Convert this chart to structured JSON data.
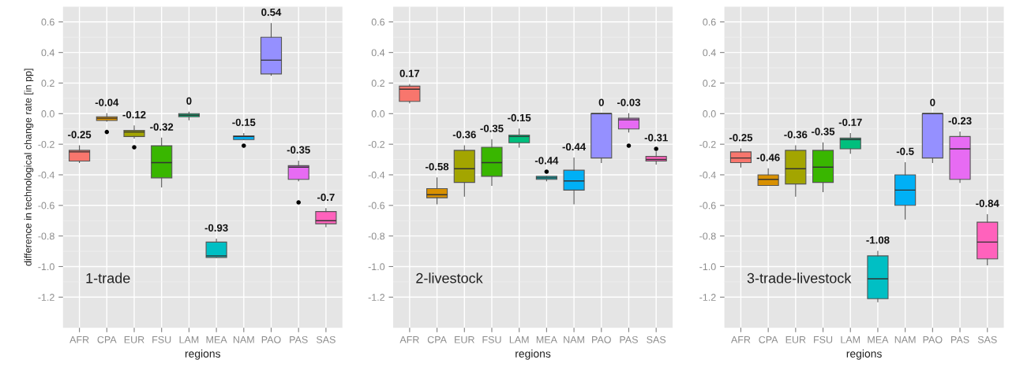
{
  "chart_data": [
    {
      "type": "box",
      "xlabel": "regions",
      "ylabel": "difference in technological change rate [in pp]",
      "grid": true,
      "categories": [
        "AFR",
        "CPA",
        "EUR",
        "FSU",
        "LAM",
        "MEA",
        "NAM",
        "PAO",
        "PAS",
        "SAS"
      ],
      "colors": [
        "#f8766d",
        "#d89000",
        "#a3a500",
        "#39b600",
        "#00bf7d",
        "#00bfc4",
        "#00b0f6",
        "#9590ff",
        "#e76bf3",
        "#ff62bc"
      ],
      "boxes": [
        {
          "low": -0.32,
          "q1": -0.31,
          "median": -0.25,
          "q3": -0.24,
          "high": -0.21
        },
        {
          "low": -0.05,
          "q1": -0.045,
          "median": -0.03,
          "q3": -0.02,
          "high": 0.0,
          "outliers": [
            -0.12
          ]
        },
        {
          "low": -0.16,
          "q1": -0.15,
          "median": -0.12,
          "q3": -0.11,
          "high": -0.08,
          "outliers": [
            -0.22
          ]
        },
        {
          "low": -0.48,
          "q1": -0.42,
          "median": -0.32,
          "q3": -0.21,
          "high": -0.16
        },
        {
          "low": -0.04,
          "q1": -0.02,
          "median": -0.01,
          "q3": 0.0,
          "high": 0.01
        },
        {
          "low": -0.94,
          "q1": -0.94,
          "median": -0.93,
          "q3": -0.84,
          "high": -0.82
        },
        {
          "low": -0.17,
          "q1": -0.17,
          "median": -0.15,
          "q3": -0.145,
          "high": -0.13,
          "outliers": [
            -0.21
          ]
        },
        {
          "low": 0.25,
          "q1": 0.26,
          "median": 0.35,
          "q3": 0.5,
          "high": 0.59
        },
        {
          "low": -0.44,
          "q1": -0.43,
          "median": -0.35,
          "q3": -0.34,
          "high": -0.31,
          "outliers": [
            -0.58
          ]
        },
        {
          "low": -0.74,
          "q1": -0.72,
          "median": -0.7,
          "q3": -0.64,
          "high": -0.62
        }
      ],
      "ylim": [
        -1.4,
        0.7
      ],
      "yticks": [
        {
          "value": -1.2,
          "label": "-1.2"
        },
        {
          "value": -1.0,
          "label": "-1.0"
        },
        {
          "value": -0.8,
          "label": "-0.8"
        },
        {
          "value": -0.6,
          "label": "-0.6"
        },
        {
          "value": -0.4,
          "label": "-0.4"
        },
        {
          "value": -0.2,
          "label": "-0.2"
        },
        {
          "value": 0,
          "label": "0.0"
        },
        {
          "value": 0.2,
          "label": "0.2"
        },
        {
          "value": 0.4,
          "label": "0.4"
        },
        {
          "value": 0.6,
          "label": "0.6"
        }
      ],
      "annotations": [
        "1-trade",
        {
          "text": "-0.25",
          "x": "AFR",
          "y": -0.21
        },
        {
          "text": "-0.04",
          "x": "CPA",
          "y": 0.0
        },
        {
          "text": "-0.12",
          "x": "EUR",
          "y": -0.08
        },
        {
          "text": "-0.32",
          "x": "FSU",
          "y": -0.16
        },
        {
          "text": "0",
          "x": "LAM",
          "y": 0.01
        },
        {
          "text": "-0.93",
          "x": "MEA",
          "y": -0.82
        },
        {
          "text": "-0.15",
          "x": "NAM",
          "y": -0.13
        },
        {
          "text": "0.54",
          "x": "PAO",
          "y": 0.59
        },
        {
          "text": "-0.35",
          "x": "PAS",
          "y": -0.31
        },
        {
          "text": "-0.7",
          "x": "SAS",
          "y": -0.62
        }
      ]
    },
    {
      "type": "box",
      "xlabel": "regions",
      "grid": true,
      "categories": [
        "AFR",
        "CPA",
        "EUR",
        "FSU",
        "LAM",
        "MEA",
        "NAM",
        "PAO",
        "PAS",
        "SAS"
      ],
      "colors": [
        "#f8766d",
        "#d89000",
        "#a3a500",
        "#39b600",
        "#00bf7d",
        "#00bfc4",
        "#00b0f6",
        "#9590ff",
        "#e76bf3",
        "#ff62bc"
      ],
      "boxes": [
        {
          "low": 0.07,
          "q1": 0.08,
          "median": 0.16,
          "q3": 0.18,
          "high": 0.19
        },
        {
          "low": -0.59,
          "q1": -0.55,
          "median": -0.53,
          "q3": -0.49,
          "high": -0.42
        },
        {
          "low": -0.54,
          "q1": -0.45,
          "median": -0.36,
          "q3": -0.24,
          "high": -0.21
        },
        {
          "low": -0.47,
          "q1": -0.41,
          "median": -0.32,
          "q3": -0.22,
          "high": -0.17
        },
        {
          "low": -0.22,
          "q1": -0.19,
          "median": -0.15,
          "q3": -0.14,
          "high": -0.1
        },
        {
          "low": -0.44,
          "q1": -0.43,
          "median": -0.42,
          "q3": -0.41,
          "high": -0.41,
          "outliers": [
            -0.38
          ]
        },
        {
          "low": -0.59,
          "q1": -0.5,
          "median": -0.44,
          "q3": -0.37,
          "high": -0.29
        },
        {
          "low": -0.32,
          "q1": -0.29,
          "median": 0.0,
          "q3": 0.0,
          "high": 0.0
        },
        {
          "low": -0.12,
          "q1": -0.1,
          "median": -0.04,
          "q3": -0.03,
          "high": 0.0,
          "outliers": [
            -0.21
          ]
        },
        {
          "low": -0.33,
          "q1": -0.31,
          "median": -0.3,
          "q3": -0.28,
          "high": -0.25,
          "outliers": [
            -0.23
          ]
        }
      ],
      "ylim": [
        -1.4,
        0.7
      ],
      "yticks": [
        {
          "value": -1.2,
          "label": "-1.2"
        },
        {
          "value": -1.0,
          "label": "-1.0"
        },
        {
          "value": -0.8,
          "label": "-0.8"
        },
        {
          "value": -0.6,
          "label": "-0.6"
        },
        {
          "value": -0.4,
          "label": "-0.4"
        },
        {
          "value": -0.2,
          "label": "-0.2"
        },
        {
          "value": 0,
          "label": "0.0"
        },
        {
          "value": 0.2,
          "label": "0.2"
        },
        {
          "value": 0.4,
          "label": "0.4"
        },
        {
          "value": 0.6,
          "label": "0.6"
        }
      ],
      "annotations": [
        "2-livestock",
        {
          "text": "0.17",
          "x": "AFR",
          "y": 0.19
        },
        {
          "text": "-0.58",
          "x": "CPA",
          "y": -0.42
        },
        {
          "text": "-0.36",
          "x": "EUR",
          "y": -0.21
        },
        {
          "text": "-0.35",
          "x": "FSU",
          "y": -0.17
        },
        {
          "text": "-0.15",
          "x": "LAM",
          "y": -0.1
        },
        {
          "text": "-0.44",
          "x": "MEA",
          "y": -0.41
        },
        {
          "text": "-0.44",
          "x": "NAM",
          "y": -0.29
        },
        {
          "text": "0",
          "x": "PAO",
          "y": 0.0
        },
        {
          "text": "-0.03",
          "x": "PAS",
          "y": 0.0
        },
        {
          "text": "-0.31",
          "x": "SAS",
          "y": -0.23
        }
      ]
    },
    {
      "type": "box",
      "xlabel": "regions",
      "grid": true,
      "categories": [
        "AFR",
        "CPA",
        "EUR",
        "FSU",
        "LAM",
        "MEA",
        "NAM",
        "PAO",
        "PAS",
        "SAS"
      ],
      "colors": [
        "#f8766d",
        "#d89000",
        "#a3a500",
        "#39b600",
        "#00bf7d",
        "#00bfc4",
        "#00b0f6",
        "#9590ff",
        "#e76bf3",
        "#ff62bc"
      ],
      "boxes": [
        {
          "low": -0.35,
          "q1": -0.32,
          "median": -0.29,
          "q3": -0.25,
          "high": -0.23
        },
        {
          "low": -0.47,
          "q1": -0.47,
          "median": -0.43,
          "q3": -0.4,
          "high": -0.36
        },
        {
          "low": -0.54,
          "q1": -0.46,
          "median": -0.36,
          "q3": -0.24,
          "high": -0.21
        },
        {
          "low": -0.51,
          "q1": -0.45,
          "median": -0.35,
          "q3": -0.24,
          "high": -0.19
        },
        {
          "low": -0.26,
          "q1": -0.23,
          "median": -0.17,
          "q3": -0.16,
          "high": -0.13
        },
        {
          "low": -1.23,
          "q1": -1.21,
          "median": -1.08,
          "q3": -0.93,
          "high": -0.9
        },
        {
          "low": -0.69,
          "q1": -0.6,
          "median": -0.5,
          "q3": -0.4,
          "high": -0.32
        },
        {
          "low": -0.32,
          "q1": -0.29,
          "median": 0.0,
          "q3": 0.0,
          "high": 0.0
        },
        {
          "low": -0.45,
          "q1": -0.43,
          "median": -0.23,
          "q3": -0.15,
          "high": -0.12
        },
        {
          "low": -0.99,
          "q1": -0.95,
          "median": -0.84,
          "q3": -0.71,
          "high": -0.66
        }
      ],
      "ylim": [
        -1.4,
        0.7
      ],
      "yticks": [
        {
          "value": -1.2,
          "label": "-1.2"
        },
        {
          "value": -1.0,
          "label": "-1.0"
        },
        {
          "value": -0.8,
          "label": "-0.8"
        },
        {
          "value": -0.6,
          "label": "-0.6"
        },
        {
          "value": -0.4,
          "label": "-0.4"
        },
        {
          "value": -0.2,
          "label": "-0.2"
        },
        {
          "value": 0,
          "label": "0.0"
        },
        {
          "value": 0.2,
          "label": "0.2"
        },
        {
          "value": 0.4,
          "label": "0.4"
        },
        {
          "value": 0.6,
          "label": "0.6"
        }
      ],
      "annotations": [
        "3-trade-livestock",
        {
          "text": "-0.25",
          "x": "AFR",
          "y": -0.23
        },
        {
          "text": "-0.46",
          "x": "CPA",
          "y": -0.36
        },
        {
          "text": "-0.36",
          "x": "EUR",
          "y": -0.21
        },
        {
          "text": "-0.35",
          "x": "FSU",
          "y": -0.19
        },
        {
          "text": "-0.17",
          "x": "LAM",
          "y": -0.13
        },
        {
          "text": "-1.08",
          "x": "MEA",
          "y": -0.9
        },
        {
          "text": "-0.5",
          "x": "NAM",
          "y": -0.32
        },
        {
          "text": "0",
          "x": "PAO",
          "y": 0.0
        },
        {
          "text": "-0.23",
          "x": "PAS",
          "y": -0.12
        },
        {
          "text": "-0.84",
          "x": "SAS",
          "y": -0.66
        }
      ]
    }
  ]
}
